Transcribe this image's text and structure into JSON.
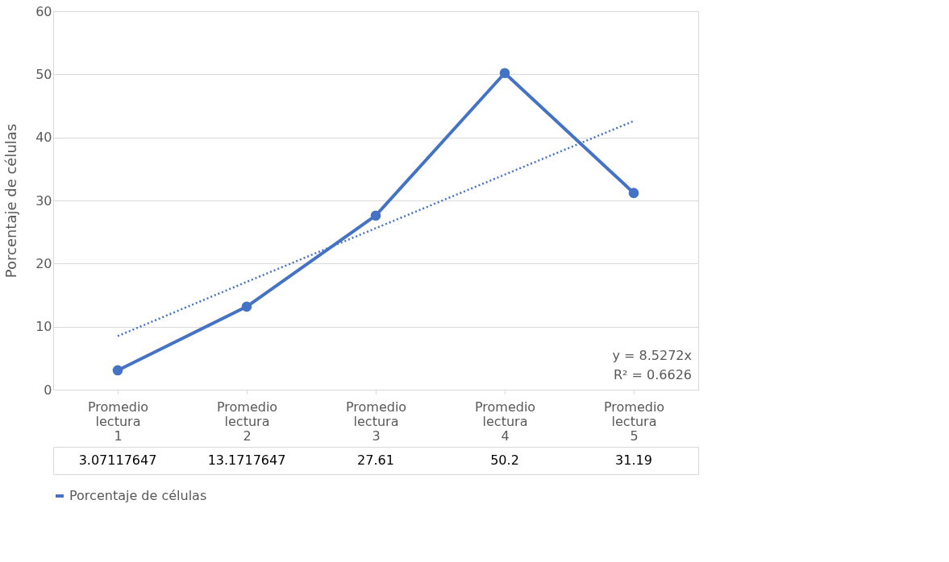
{
  "chart_data": {
    "type": "line",
    "ylabel": "Porcentaje de células",
    "categories": [
      "Promedio lectura 1",
      "Promedio lectura 2",
      "Promedio lectura 3",
      "Promedio lectura 4",
      "Promedio lectura 5"
    ],
    "series": [
      {
        "name": "Porcentaje de células",
        "color": "#4472c4",
        "values": [
          3.07117647,
          13.1717647,
          27.61,
          50.2,
          31.19
        ],
        "value_labels": [
          "3.07117647",
          "13.1717647",
          "27.61",
          "50.2",
          "31.19"
        ],
        "marker": "circle",
        "line_style": "solid"
      },
      {
        "type": "line",
        "color": "#4472c4",
        "x": [
          "Promedio lectura 1",
          "Promedio lectura 2",
          "Promedio lectura 3",
          "Promedio lectura 4",
          "Promedio lectura 5"
        ],
        "values": [
          8.5,
          17.1,
          25.6,
          34.1,
          42.6
        ],
        "marker": "none",
        "line_style": "dotted"
      }
    ],
    "ylim": [
      0,
      60
    ],
    "yticks": [
      0,
      10,
      20,
      30,
      40,
      50,
      60
    ],
    "grid": "y",
    "legend": "bottom",
    "annotations": [
      "y = 8.5272x",
      "R² = 0.6626"
    ]
  }
}
